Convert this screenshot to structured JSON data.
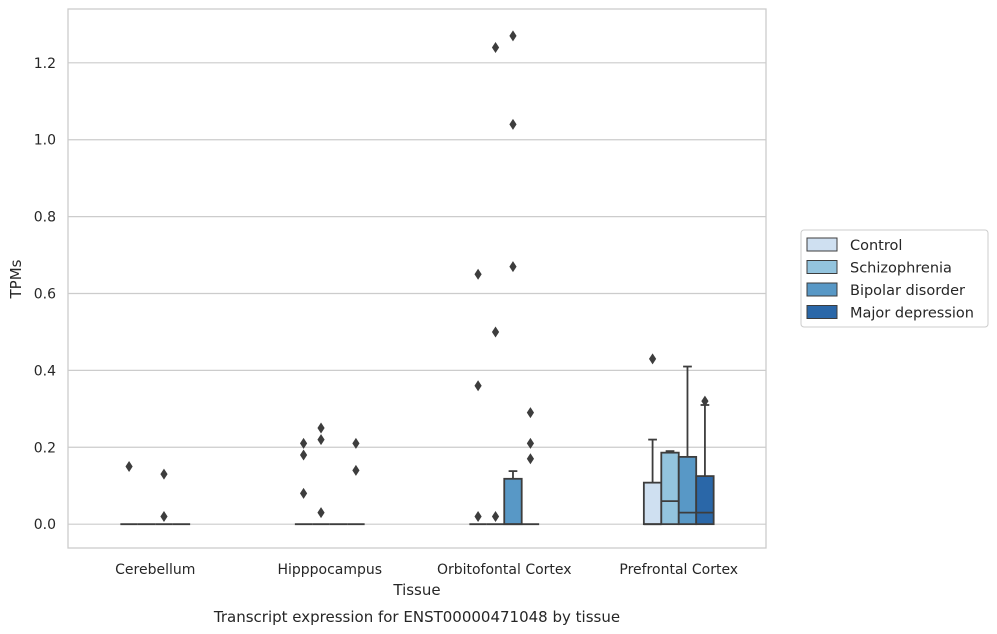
{
  "chart_data": {
    "type": "boxplot",
    "xlabel": "Tissue",
    "ylabel": "TPMs",
    "caption": "Transcript expression for ENST00000471048 by tissue",
    "ylim": [
      -0.062,
      1.34
    ],
    "yticks": [
      0.0,
      0.2,
      0.4,
      0.6,
      0.8,
      1.0,
      1.2
    ],
    "ytick_labels": [
      "0.0",
      "0.2",
      "0.4",
      "0.6",
      "0.8",
      "1.0",
      "1.2"
    ],
    "grid": "horizontal",
    "legend_position": "right",
    "categories": [
      "Cerebellum",
      "Hipppocampus",
      "Orbitofontal Cortex",
      "Prefrontal Cortex"
    ],
    "series": [
      {
        "name": "Control",
        "color": "#cfe0f1",
        "boxes": [
          {
            "q1": 0,
            "median": 0,
            "q3": 0,
            "whisker_low": 0,
            "whisker_high": 0,
            "outliers": [
              0.15
            ]
          },
          {
            "q1": 0,
            "median": 0,
            "q3": 0,
            "whisker_low": 0,
            "whisker_high": 0,
            "outliers": [
              0.21,
              0.18,
              0.08
            ]
          },
          {
            "q1": 0,
            "median": 0,
            "q3": 0,
            "whisker_low": 0,
            "whisker_high": 0,
            "outliers": [
              0.65,
              0.36,
              0.02
            ]
          },
          {
            "q1": 0,
            "median": 0,
            "q3": 0.108,
            "whisker_low": 0,
            "whisker_high": 0.22,
            "outliers": [
              0.43
            ]
          }
        ]
      },
      {
        "name": "Schizophrenia",
        "color": "#93c4de",
        "boxes": [
          {
            "q1": 0,
            "median": 0,
            "q3": 0,
            "whisker_low": 0,
            "whisker_high": 0,
            "outliers": []
          },
          {
            "q1": 0,
            "median": 0,
            "q3": 0,
            "whisker_low": 0,
            "whisker_high": 0,
            "outliers": [
              0.25,
              0.22,
              0.03
            ]
          },
          {
            "q1": 0,
            "median": 0,
            "q3": 0,
            "whisker_low": 0,
            "whisker_high": 0,
            "outliers": [
              1.24,
              0.5,
              0.02
            ]
          },
          {
            "q1": 0,
            "median": 0.06,
            "q3": 0.186,
            "whisker_low": 0,
            "whisker_high": 0.19,
            "outliers": []
          }
        ]
      },
      {
        "name": "Bipolar disorder",
        "color": "#5898c6",
        "boxes": [
          {
            "q1": 0,
            "median": 0,
            "q3": 0,
            "whisker_low": 0,
            "whisker_high": 0,
            "outliers": [
              0.13,
              0.02
            ]
          },
          {
            "q1": 0,
            "median": 0,
            "q3": 0,
            "whisker_low": 0,
            "whisker_high": 0,
            "outliers": []
          },
          {
            "q1": 0,
            "median": 0,
            "q3": 0.118,
            "whisker_low": 0,
            "whisker_high": 0.138,
            "outliers": [
              1.27,
              1.04,
              0.67
            ]
          },
          {
            "q1": 0,
            "median": 0.03,
            "q3": 0.175,
            "whisker_low": 0,
            "whisker_high": 0.41,
            "outliers": []
          }
        ]
      },
      {
        "name": "Major depression",
        "color": "#2a67a8",
        "boxes": [
          {
            "q1": 0,
            "median": 0,
            "q3": 0,
            "whisker_low": 0,
            "whisker_high": 0,
            "outliers": []
          },
          {
            "q1": 0,
            "median": 0,
            "q3": 0,
            "whisker_low": 0,
            "whisker_high": 0,
            "outliers": [
              0.21,
              0.14
            ]
          },
          {
            "q1": 0,
            "median": 0,
            "q3": 0,
            "whisker_low": 0,
            "whisker_high": 0,
            "outliers": [
              0.29,
              0.21,
              0.17
            ]
          },
          {
            "q1": 0,
            "median": 0.03,
            "q3": 0.125,
            "whisker_low": 0,
            "whisker_high": 0.31,
            "outliers": [
              0.32
            ]
          }
        ]
      }
    ]
  }
}
